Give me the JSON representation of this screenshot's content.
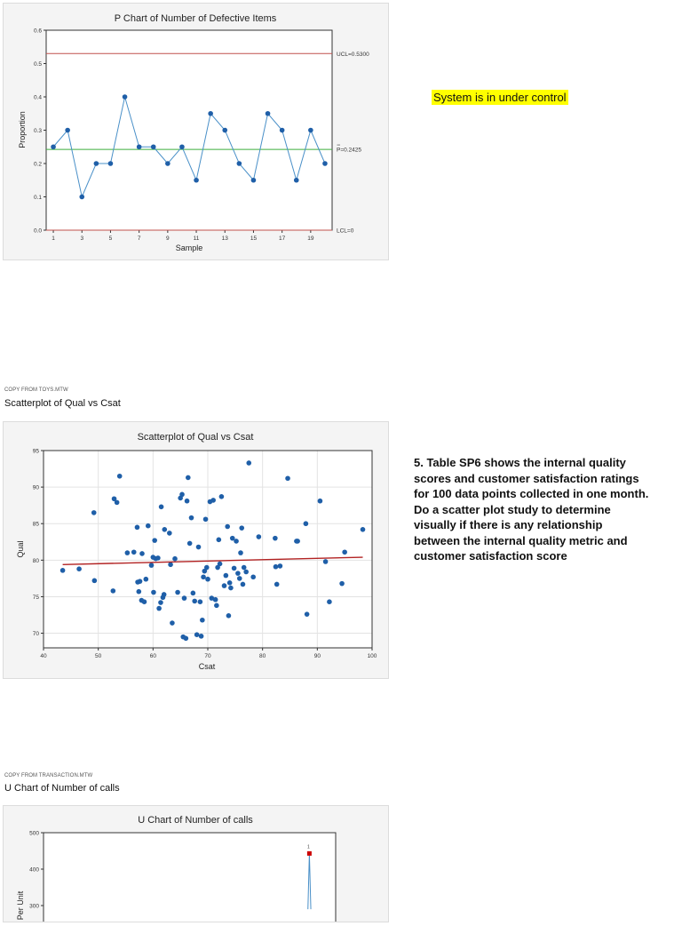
{
  "p_chart": {
    "chart_data": {
      "type": "line",
      "title": "P Chart of Number of Defective Items",
      "xlabel": "Sample",
      "ylabel": "Proportion",
      "x": [
        1,
        2,
        3,
        4,
        5,
        6,
        7,
        8,
        9,
        10,
        11,
        12,
        13,
        14,
        15,
        16,
        17,
        18,
        19,
        20
      ],
      "values": [
        0.25,
        0.3,
        0.1,
        0.2,
        0.2,
        0.4,
        0.25,
        0.25,
        0.2,
        0.25,
        0.15,
        0.35,
        0.3,
        0.2,
        0.15,
        0.35,
        0.3,
        0.15,
        0.3,
        0.2
      ],
      "x_ticks": [
        1,
        3,
        5,
        7,
        9,
        11,
        13,
        15,
        17,
        19
      ],
      "y_ticks": [
        "0.0",
        "0.1",
        "0.2",
        "0.3",
        "0.4",
        "0.5",
        "0.6"
      ],
      "ylim": [
        0,
        0.6
      ],
      "xlim": [
        1,
        20
      ],
      "ucl": 0.53,
      "center": 0.2425,
      "lcl": 0,
      "ucl_label": "UCL=0.5300",
      "center_label": "P=0.2425",
      "lcl_label": "LCL=0",
      "line_color": "#4a90c8",
      "point_color": "#1f5fa8",
      "limit_color": "#c0504d",
      "center_color": "#3cae3c"
    },
    "note": "System is in under control"
  },
  "scatter": {
    "copy_note": "COPY FROM TOYS.MTW",
    "heading": "Scatterplot of Qual vs Csat",
    "chart_data": {
      "type": "scatter",
      "title": "Scatterplot of Qual vs Csat",
      "xlabel": "Csat",
      "ylabel": "Qual",
      "xlim": [
        40,
        100
      ],
      "ylim": [
        68,
        95
      ],
      "x_ticks": [
        "40",
        "50",
        "60",
        "70",
        "80",
        "90",
        "100"
      ],
      "y_ticks": [
        "70",
        "75",
        "80",
        "85",
        "90",
        "95"
      ],
      "grid": true,
      "fit_line": {
        "x": [
          43.5,
          98.3
        ],
        "y": [
          79.4,
          80.4
        ]
      },
      "points": [
        [
          43.5,
          78.6
        ],
        [
          46.5,
          78.8
        ],
        [
          49.2,
          86.5
        ],
        [
          49.3,
          77.2
        ],
        [
          52.7,
          75.8
        ],
        [
          52.9,
          88.4
        ],
        [
          53.4,
          87.9
        ],
        [
          53.9,
          91.5
        ],
        [
          55.3,
          81.0
        ],
        [
          56.5,
          81.1
        ],
        [
          57.1,
          84.5
        ],
        [
          57.2,
          77.0
        ],
        [
          57.4,
          75.7
        ],
        [
          57.6,
          77.1
        ],
        [
          57.9,
          74.5
        ],
        [
          58.0,
          80.9
        ],
        [
          58.4,
          74.3
        ],
        [
          58.7,
          77.4
        ],
        [
          59.1,
          84.7
        ],
        [
          59.7,
          79.3
        ],
        [
          60.0,
          80.4
        ],
        [
          60.1,
          75.6
        ],
        [
          60.3,
          82.7
        ],
        [
          60.5,
          80.2
        ],
        [
          60.9,
          80.3
        ],
        [
          61.1,
          73.4
        ],
        [
          61.4,
          74.2
        ],
        [
          61.5,
          87.3
        ],
        [
          61.8,
          74.9
        ],
        [
          62.0,
          75.3
        ],
        [
          62.1,
          84.2
        ],
        [
          63.0,
          83.7
        ],
        [
          63.2,
          79.4
        ],
        [
          63.5,
          71.4
        ],
        [
          64.0,
          80.2
        ],
        [
          64.5,
          75.6
        ],
        [
          65.0,
          88.5
        ],
        [
          65.3,
          89.0
        ],
        [
          65.5,
          69.5
        ],
        [
          65.7,
          74.8
        ],
        [
          66.0,
          69.3
        ],
        [
          66.2,
          88.1
        ],
        [
          66.4,
          91.3
        ],
        [
          66.7,
          82.3
        ],
        [
          67.0,
          85.8
        ],
        [
          67.3,
          75.5
        ],
        [
          67.6,
          74.4
        ],
        [
          68.0,
          69.8
        ],
        [
          68.3,
          81.8
        ],
        [
          68.6,
          74.3
        ],
        [
          68.8,
          69.6
        ],
        [
          69.0,
          71.8
        ],
        [
          69.2,
          77.7
        ],
        [
          69.4,
          78.5
        ],
        [
          69.6,
          85.6
        ],
        [
          69.8,
          79.0
        ],
        [
          70.0,
          77.4
        ],
        [
          70.4,
          88.0
        ],
        [
          70.7,
          74.8
        ],
        [
          71.0,
          88.2
        ],
        [
          71.4,
          74.6
        ],
        [
          71.6,
          73.8
        ],
        [
          71.8,
          79.0
        ],
        [
          72.0,
          82.8
        ],
        [
          72.2,
          79.5
        ],
        [
          72.5,
          88.7
        ],
        [
          73.0,
          76.5
        ],
        [
          73.3,
          77.9
        ],
        [
          73.6,
          84.6
        ],
        [
          73.8,
          72.4
        ],
        [
          74.0,
          76.9
        ],
        [
          74.2,
          76.2
        ],
        [
          74.5,
          83.0
        ],
        [
          74.8,
          78.9
        ],
        [
          75.2,
          82.6
        ],
        [
          75.5,
          78.2
        ],
        [
          75.8,
          77.5
        ],
        [
          76.0,
          81.0
        ],
        [
          76.2,
          84.4
        ],
        [
          76.4,
          76.7
        ],
        [
          76.6,
          79.0
        ],
        [
          77.0,
          78.4
        ],
        [
          77.5,
          93.3
        ],
        [
          78.3,
          77.7
        ],
        [
          79.3,
          83.2
        ],
        [
          82.3,
          83.0
        ],
        [
          82.4,
          79.1
        ],
        [
          82.6,
          76.7
        ],
        [
          83.2,
          79.2
        ],
        [
          84.6,
          91.2
        ],
        [
          86.2,
          82.6
        ],
        [
          86.4,
          82.6
        ],
        [
          87.9,
          85.0
        ],
        [
          88.1,
          72.6
        ],
        [
          90.5,
          88.1
        ],
        [
          91.5,
          79.8
        ],
        [
          92.2,
          74.3
        ],
        [
          94.5,
          76.8
        ],
        [
          95.0,
          81.1
        ],
        [
          98.3,
          84.2
        ]
      ],
      "point_color": "#1f5fa8",
      "fit_color": "#b22222"
    },
    "task_text": "5. Table SP6 shows the internal quality scores and customer satisfaction ratings for 100 data points collected in one month. Do a scatter plot study to determine visually if there is any relationship between the internal quality metric and customer satisfaction score"
  },
  "u_chart": {
    "copy_note": "COPY FROM TRANSACTION.MTW",
    "heading": "U Chart of Number of calls",
    "chart_data": {
      "type": "line",
      "title": "U Chart of Number of calls",
      "ylabel": "Per Unit",
      "y_ticks": [
        "500",
        "400",
        "300"
      ],
      "ylim_visible": [
        300,
        500
      ],
      "visible_segment": [
        [
          0.905,
          290
        ],
        [
          0.91,
          443
        ],
        [
          0.915,
          290
        ]
      ],
      "flag_label": "1",
      "line_color": "#4a90c8",
      "flag_color": "#cc0000"
    }
  }
}
